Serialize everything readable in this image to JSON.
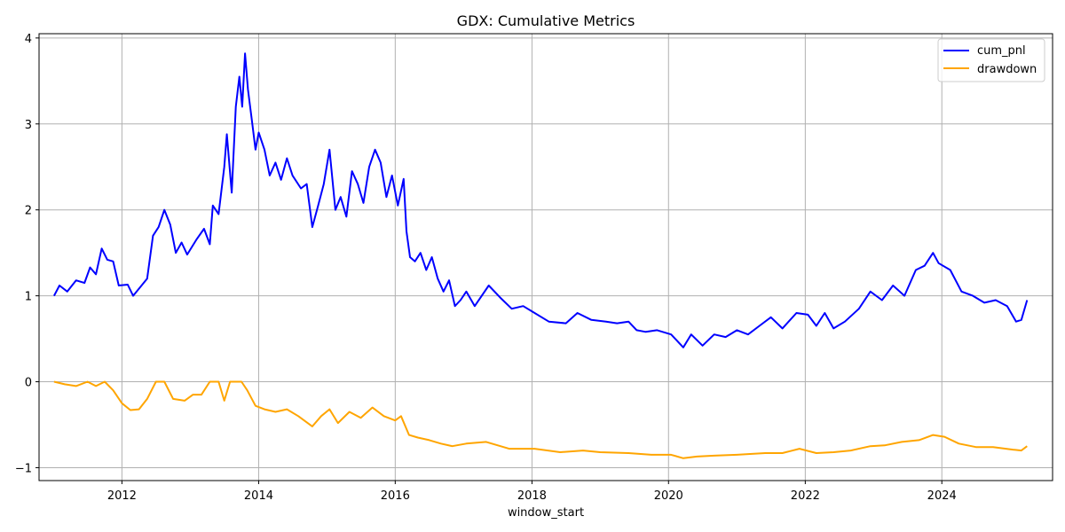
{
  "chart_data": {
    "type": "line",
    "title": "GDX: Cumulative Metrics",
    "xlabel": "window_start",
    "ylabel": "",
    "xlim": [
      "2010-10-15",
      "2025-08-15"
    ],
    "ylim": [
      -1.15,
      4.05
    ],
    "x_ticks": [
      {
        "date": "2012-01-01",
        "label": "2012"
      },
      {
        "date": "2014-01-01",
        "label": "2014"
      },
      {
        "date": "2016-01-01",
        "label": "2016"
      },
      {
        "date": "2018-01-01",
        "label": "2018"
      },
      {
        "date": "2020-01-01",
        "label": "2020"
      },
      {
        "date": "2022-01-01",
        "label": "2022"
      },
      {
        "date": "2024-01-01",
        "label": "2024"
      }
    ],
    "y_ticks": [
      {
        "value": -1,
        "label": "−1"
      },
      {
        "value": 0,
        "label": "0"
      },
      {
        "value": 1,
        "label": "1"
      },
      {
        "value": 2,
        "label": "2"
      },
      {
        "value": 3,
        "label": "3"
      },
      {
        "value": 4,
        "label": "4"
      }
    ],
    "grid": true,
    "legend_position": "top-right",
    "series": [
      {
        "name": "cum_pnl",
        "color": "#0000ff",
        "points": [
          [
            "2011-01-03",
            1.0
          ],
          [
            "2011-02-01",
            1.12
          ],
          [
            "2011-03-15",
            1.05
          ],
          [
            "2011-05-01",
            1.18
          ],
          [
            "2011-06-15",
            1.15
          ],
          [
            "2011-07-15",
            1.33
          ],
          [
            "2011-08-15",
            1.25
          ],
          [
            "2011-09-15",
            1.55
          ],
          [
            "2011-10-15",
            1.42
          ],
          [
            "2011-11-15",
            1.4
          ],
          [
            "2011-12-15",
            1.12
          ],
          [
            "2012-02-01",
            1.13
          ],
          [
            "2012-03-01",
            1.0
          ],
          [
            "2012-04-15",
            1.12
          ],
          [
            "2012-05-15",
            1.2
          ],
          [
            "2012-06-15",
            1.7
          ],
          [
            "2012-07-15",
            1.8
          ],
          [
            "2012-08-15",
            2.0
          ],
          [
            "2012-09-15",
            1.83
          ],
          [
            "2012-10-15",
            1.5
          ],
          [
            "2012-11-15",
            1.62
          ],
          [
            "2012-12-15",
            1.48
          ],
          [
            "2013-02-01",
            1.65
          ],
          [
            "2013-03-15",
            1.78
          ],
          [
            "2013-04-15",
            1.6
          ],
          [
            "2013-05-01",
            2.05
          ],
          [
            "2013-06-01",
            1.95
          ],
          [
            "2013-07-01",
            2.5
          ],
          [
            "2013-07-15",
            2.88
          ],
          [
            "2013-08-10",
            2.2
          ],
          [
            "2013-09-01",
            3.2
          ],
          [
            "2013-09-20",
            3.55
          ],
          [
            "2013-10-05",
            3.2
          ],
          [
            "2013-10-20",
            3.82
          ],
          [
            "2013-11-05",
            3.4
          ],
          [
            "2013-11-25",
            3.05
          ],
          [
            "2013-12-15",
            2.7
          ],
          [
            "2014-01-01",
            2.9
          ],
          [
            "2014-02-01",
            2.7
          ],
          [
            "2014-03-01",
            2.4
          ],
          [
            "2014-04-01",
            2.55
          ],
          [
            "2014-05-01",
            2.35
          ],
          [
            "2014-06-01",
            2.6
          ],
          [
            "2014-07-01",
            2.4
          ],
          [
            "2014-08-15",
            2.25
          ],
          [
            "2014-09-15",
            2.3
          ],
          [
            "2014-10-15",
            1.8
          ],
          [
            "2014-11-15",
            2.05
          ],
          [
            "2014-12-15",
            2.3
          ],
          [
            "2015-01-15",
            2.7
          ],
          [
            "2015-02-15",
            2.0
          ],
          [
            "2015-03-15",
            2.15
          ],
          [
            "2015-04-15",
            1.92
          ],
          [
            "2015-05-15",
            2.45
          ],
          [
            "2015-06-15",
            2.3
          ],
          [
            "2015-07-15",
            2.08
          ],
          [
            "2015-08-15",
            2.5
          ],
          [
            "2015-09-15",
            2.7
          ],
          [
            "2015-10-15",
            2.55
          ],
          [
            "2015-11-15",
            2.15
          ],
          [
            "2015-12-15",
            2.4
          ],
          [
            "2016-01-15",
            2.05
          ],
          [
            "2016-02-15",
            2.36
          ],
          [
            "2016-03-01",
            1.75
          ],
          [
            "2016-03-20",
            1.45
          ],
          [
            "2016-04-15",
            1.4
          ],
          [
            "2016-05-15",
            1.5
          ],
          [
            "2016-06-15",
            1.3
          ],
          [
            "2016-07-15",
            1.45
          ],
          [
            "2016-08-15",
            1.2
          ],
          [
            "2016-09-15",
            1.05
          ],
          [
            "2016-10-15",
            1.18
          ],
          [
            "2016-11-15",
            0.88
          ],
          [
            "2016-12-15",
            0.95
          ],
          [
            "2017-01-15",
            1.05
          ],
          [
            "2017-03-01",
            0.88
          ],
          [
            "2017-05-15",
            1.12
          ],
          [
            "2017-07-15",
            0.98
          ],
          [
            "2017-09-15",
            0.85
          ],
          [
            "2017-11-15",
            0.88
          ],
          [
            "2018-01-15",
            0.8
          ],
          [
            "2018-04-01",
            0.7
          ],
          [
            "2018-07-01",
            0.68
          ],
          [
            "2018-09-01",
            0.8
          ],
          [
            "2018-11-15",
            0.72
          ],
          [
            "2019-02-01",
            0.7
          ],
          [
            "2019-04-01",
            0.68
          ],
          [
            "2019-06-01",
            0.7
          ],
          [
            "2019-07-15",
            0.6
          ],
          [
            "2019-09-01",
            0.58
          ],
          [
            "2019-11-01",
            0.6
          ],
          [
            "2020-01-15",
            0.55
          ],
          [
            "2020-03-20",
            0.4
          ],
          [
            "2020-05-01",
            0.55
          ],
          [
            "2020-07-01",
            0.42
          ],
          [
            "2020-09-01",
            0.55
          ],
          [
            "2020-11-01",
            0.52
          ],
          [
            "2021-01-01",
            0.6
          ],
          [
            "2021-03-01",
            0.55
          ],
          [
            "2021-05-01",
            0.65
          ],
          [
            "2021-07-01",
            0.75
          ],
          [
            "2021-09-01",
            0.62
          ],
          [
            "2021-11-15",
            0.8
          ],
          [
            "2022-01-15",
            0.78
          ],
          [
            "2022-03-01",
            0.65
          ],
          [
            "2022-04-15",
            0.8
          ],
          [
            "2022-06-01",
            0.62
          ],
          [
            "2022-08-01",
            0.7
          ],
          [
            "2022-10-15",
            0.85
          ],
          [
            "2022-12-15",
            1.05
          ],
          [
            "2023-02-15",
            0.95
          ],
          [
            "2023-04-15",
            1.12
          ],
          [
            "2023-06-15",
            1.0
          ],
          [
            "2023-08-15",
            1.3
          ],
          [
            "2023-10-01",
            1.35
          ],
          [
            "2023-11-15",
            1.5
          ],
          [
            "2023-12-15",
            1.38
          ],
          [
            "2024-02-15",
            1.3
          ],
          [
            "2024-04-15",
            1.05
          ],
          [
            "2024-06-15",
            1.0
          ],
          [
            "2024-08-15",
            0.92
          ],
          [
            "2024-10-15",
            0.95
          ],
          [
            "2024-12-15",
            0.88
          ],
          [
            "2025-02-01",
            0.7
          ],
          [
            "2025-03-01",
            0.72
          ],
          [
            "2025-04-01",
            0.95
          ]
        ]
      },
      {
        "name": "drawdown",
        "color": "#ffa500",
        "points": [
          [
            "2011-01-03",
            0.0
          ],
          [
            "2011-03-01",
            -0.03
          ],
          [
            "2011-05-01",
            -0.05
          ],
          [
            "2011-07-01",
            0.0
          ],
          [
            "2011-08-15",
            -0.05
          ],
          [
            "2011-10-01",
            0.0
          ],
          [
            "2011-11-15",
            -0.1
          ],
          [
            "2012-01-01",
            -0.25
          ],
          [
            "2012-02-15",
            -0.33
          ],
          [
            "2012-04-01",
            -0.32
          ],
          [
            "2012-05-15",
            -0.2
          ],
          [
            "2012-07-01",
            0.0
          ],
          [
            "2012-08-15",
            0.0
          ],
          [
            "2012-10-01",
            -0.2
          ],
          [
            "2012-12-01",
            -0.22
          ],
          [
            "2013-01-15",
            -0.15
          ],
          [
            "2013-03-01",
            -0.15
          ],
          [
            "2013-04-15",
            0.0
          ],
          [
            "2013-06-01",
            0.0
          ],
          [
            "2013-07-01",
            -0.22
          ],
          [
            "2013-08-01",
            0.0
          ],
          [
            "2013-10-01",
            0.0
          ],
          [
            "2013-11-01",
            -0.1
          ],
          [
            "2013-12-15",
            -0.28
          ],
          [
            "2014-02-01",
            -0.32
          ],
          [
            "2014-04-01",
            -0.35
          ],
          [
            "2014-06-01",
            -0.32
          ],
          [
            "2014-08-01",
            -0.4
          ],
          [
            "2014-10-15",
            -0.52
          ],
          [
            "2014-12-01",
            -0.4
          ],
          [
            "2015-01-15",
            -0.32
          ],
          [
            "2015-03-01",
            -0.48
          ],
          [
            "2015-05-01",
            -0.35
          ],
          [
            "2015-07-01",
            -0.42
          ],
          [
            "2015-09-01",
            -0.3
          ],
          [
            "2015-11-01",
            -0.4
          ],
          [
            "2016-01-01",
            -0.45
          ],
          [
            "2016-02-01",
            -0.4
          ],
          [
            "2016-03-15",
            -0.62
          ],
          [
            "2016-05-01",
            -0.65
          ],
          [
            "2016-07-01",
            -0.68
          ],
          [
            "2016-09-01",
            -0.72
          ],
          [
            "2016-11-01",
            -0.75
          ],
          [
            "2017-01-15",
            -0.72
          ],
          [
            "2017-05-01",
            -0.7
          ],
          [
            "2017-09-01",
            -0.78
          ],
          [
            "2018-01-15",
            -0.78
          ],
          [
            "2018-06-01",
            -0.82
          ],
          [
            "2018-10-01",
            -0.8
          ],
          [
            "2019-01-01",
            -0.82
          ],
          [
            "2019-06-01",
            -0.83
          ],
          [
            "2019-10-01",
            -0.85
          ],
          [
            "2020-01-15",
            -0.85
          ],
          [
            "2020-03-20",
            -0.89
          ],
          [
            "2020-06-01",
            -0.87
          ],
          [
            "2020-09-01",
            -0.86
          ],
          [
            "2021-01-01",
            -0.85
          ],
          [
            "2021-06-01",
            -0.83
          ],
          [
            "2021-09-01",
            -0.83
          ],
          [
            "2021-12-01",
            -0.78
          ],
          [
            "2022-03-01",
            -0.83
          ],
          [
            "2022-06-01",
            -0.82
          ],
          [
            "2022-09-01",
            -0.8
          ],
          [
            "2022-12-15",
            -0.75
          ],
          [
            "2023-03-01",
            -0.74
          ],
          [
            "2023-06-01",
            -0.7
          ],
          [
            "2023-09-01",
            -0.68
          ],
          [
            "2023-11-15",
            -0.62
          ],
          [
            "2024-01-15",
            -0.64
          ],
          [
            "2024-04-01",
            -0.72
          ],
          [
            "2024-07-01",
            -0.76
          ],
          [
            "2024-10-01",
            -0.76
          ],
          [
            "2025-01-15",
            -0.79
          ],
          [
            "2025-03-01",
            -0.8
          ],
          [
            "2025-04-01",
            -0.75
          ]
        ]
      }
    ]
  }
}
